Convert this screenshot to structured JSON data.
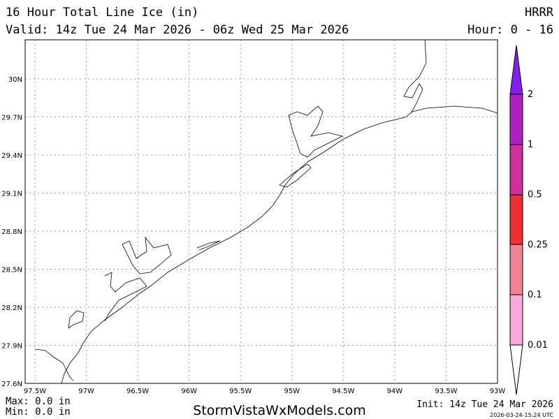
{
  "header": {
    "title": "16 Hour Total Line Ice (in)",
    "model": "HRRR",
    "valid": "Valid: 14z Tue 24 Mar 2026 - 06z Wed 25 Mar 2026",
    "hour": "Hour: 0 - 16"
  },
  "map": {
    "lat_labels": [
      "30N",
      "29.7N",
      "29.4N",
      "29.1N",
      "28.8N",
      "28.5N",
      "28.2N",
      "27.9N",
      "27.6N"
    ],
    "lon_labels": [
      "97.5W",
      "97W",
      "96.5W",
      "96W",
      "95.5W",
      "95W",
      "94.5W",
      "94W",
      "93.5W",
      "93W"
    ]
  },
  "colorbar": {
    "labels": [
      "0.01",
      "0.1",
      "0.25",
      "0.5",
      "1",
      "2"
    ]
  },
  "footer": {
    "max": "Max: 0.0 in",
    "min": "Min: 0.0 in",
    "site": "StormVistaWxModels.com",
    "init": "Init: 14z Tue 24 Mar 2026",
    "timestamp": "2026-03-24-15:24 UTC"
  }
}
